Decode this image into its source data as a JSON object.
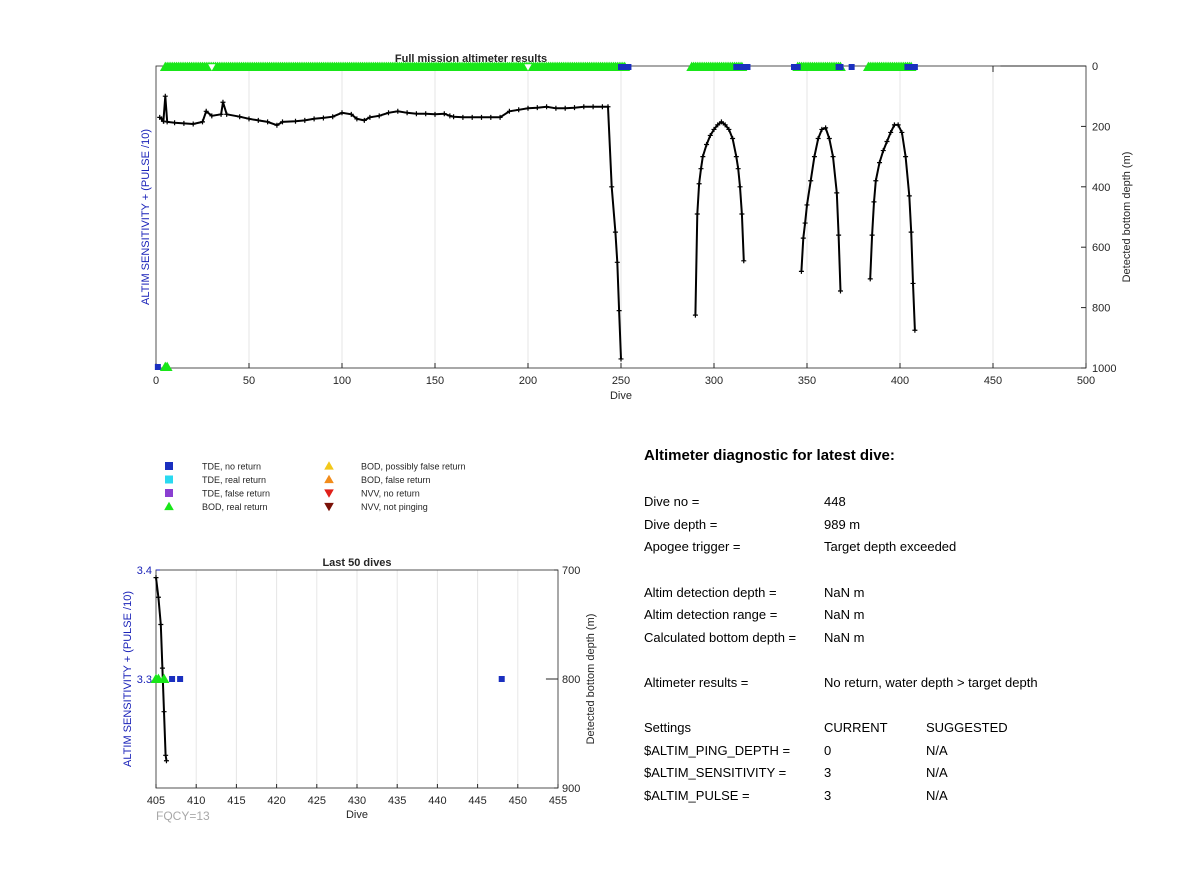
{
  "colors": {
    "tde_no_return": "#1a2fbf",
    "tde_real_return": "#29d9f0",
    "tde_false_return": "#8a3fd1",
    "bod_real_return": "#19e619",
    "bod_possibly_false": "#f2c81a",
    "bod_false_return": "#f28c1a",
    "nvv_no_return": "#e0201a",
    "nvv_not_pinging": "#7a1208",
    "depth_line": "#000000",
    "left_axis_label": "#1a22b8",
    "fqcy_text": "#a8a8a8"
  },
  "legend": {
    "items": [
      {
        "label": "TDE, no return",
        "marker": "square",
        "color_key": "tde_no_return"
      },
      {
        "label": "TDE, real return",
        "marker": "square",
        "color_key": "tde_real_return"
      },
      {
        "label": "TDE, false return",
        "marker": "square",
        "color_key": "tde_false_return"
      },
      {
        "label": "BOD, real return",
        "marker": "triangle-up",
        "color_key": "bod_real_return"
      },
      {
        "label": "BOD, possibly false return",
        "marker": "triangle-up",
        "color_key": "bod_possibly_false"
      },
      {
        "label": "BOD, false return",
        "marker": "triangle-up",
        "color_key": "bod_false_return"
      },
      {
        "label": "NVV, no return",
        "marker": "triangle-down",
        "color_key": "nvv_no_return"
      },
      {
        "label": "NVV, not pinging",
        "marker": "triangle-down",
        "color_key": "nvv_not_pinging"
      }
    ]
  },
  "chart_data": [
    {
      "type": "line",
      "title": "Full mission altimeter results",
      "xlabel": "Dive",
      "ylabel_left": "ALTIM SENSITIVITY + (PULSE /10)",
      "ylabel_right": "Detected bottom depth (m)",
      "xlim": [
        0,
        500
      ],
      "x_ticks": [
        0,
        50,
        100,
        150,
        200,
        250,
        300,
        350,
        400,
        450,
        500
      ],
      "y_right_lim": [
        1000,
        0
      ],
      "y_right_ticks": [
        0,
        200,
        400,
        600,
        800,
        1000
      ],
      "grid": "x",
      "series": [
        {
          "name": "Detected bottom depth",
          "style": "line-plus",
          "color_key": "depth_line",
          "segments": [
            [
              [
                2,
                170
              ],
              [
                3,
                175
              ],
              [
                4,
                183
              ],
              [
                5,
                100
              ],
              [
                6,
                185
              ],
              [
                10,
                188
              ],
              [
                15,
                190
              ],
              [
                20,
                192
              ],
              [
                25,
                185
              ],
              [
                27,
                150
              ],
              [
                30,
                165
              ],
              [
                35,
                160
              ],
              [
                36,
                120
              ],
              [
                38,
                160
              ],
              [
                45,
                168
              ],
              [
                50,
                175
              ],
              [
                55,
                180
              ],
              [
                60,
                185
              ],
              [
                65,
                196
              ],
              [
                68,
                185
              ],
              [
                75,
                183
              ],
              [
                80,
                180
              ],
              [
                85,
                175
              ],
              [
                90,
                172
              ],
              [
                95,
                168
              ],
              [
                100,
                155
              ],
              [
                105,
                160
              ],
              [
                108,
                175
              ],
              [
                112,
                180
              ],
              [
                115,
                170
              ],
              [
                120,
                165
              ],
              [
                125,
                155
              ],
              [
                130,
                150
              ],
              [
                135,
                155
              ],
              [
                140,
                158
              ],
              [
                145,
                158
              ],
              [
                150,
                160
              ],
              [
                155,
                158
              ],
              [
                158,
                165
              ],
              [
                160,
                168
              ],
              [
                165,
                170
              ],
              [
                170,
                170
              ],
              [
                175,
                170
              ],
              [
                180,
                170
              ],
              [
                185,
                170
              ],
              [
                190,
                150
              ],
              [
                195,
                145
              ],
              [
                200,
                140
              ],
              [
                205,
                138
              ],
              [
                210,
                135
              ],
              [
                215,
                140
              ],
              [
                220,
                140
              ],
              [
                225,
                138
              ],
              [
                230,
                135
              ],
              [
                235,
                135
              ],
              [
                240,
                135
              ],
              [
                243,
                135
              ],
              [
                245,
                400
              ],
              [
                247,
                550
              ],
              [
                248,
                650
              ],
              [
                249,
                810
              ],
              [
                250,
                970
              ]
            ],
            [
              [
                290,
                825
              ],
              [
                291,
                490
              ],
              [
                292,
                390
              ],
              [
                293,
                340
              ],
              [
                294,
                300
              ],
              [
                296,
                260
              ],
              [
                298,
                230
              ],
              [
                300,
                210
              ],
              [
                302,
                195
              ],
              [
                304,
                185
              ],
              [
                306,
                195
              ],
              [
                308,
                210
              ],
              [
                310,
                240
              ],
              [
                312,
                300
              ],
              [
                313,
                340
              ],
              [
                314,
                400
              ],
              [
                315,
                490
              ],
              [
                316,
                645
              ]
            ],
            [
              [
                347,
                680
              ],
              [
                348,
                570
              ],
              [
                349,
                520
              ],
              [
                350,
                460
              ],
              [
                352,
                380
              ],
              [
                354,
                300
              ],
              [
                356,
                240
              ],
              [
                358,
                210
              ],
              [
                360,
                205
              ],
              [
                362,
                240
              ],
              [
                364,
                300
              ],
              [
                366,
                420
              ],
              [
                367,
                560
              ],
              [
                368,
                745
              ]
            ],
            [
              [
                384,
                705
              ],
              [
                385,
                560
              ],
              [
                386,
                450
              ],
              [
                387,
                380
              ],
              [
                389,
                320
              ],
              [
                391,
                280
              ],
              [
                393,
                250
              ],
              [
                395,
                220
              ],
              [
                397,
                195
              ],
              [
                399,
                195
              ],
              [
                401,
                220
              ],
              [
                403,
                300
              ],
              [
                405,
                430
              ],
              [
                406,
                550
              ],
              [
                407,
                720
              ],
              [
                408,
                875
              ]
            ]
          ]
        },
        {
          "name": "BOD, real return",
          "marker": "triangle-up",
          "color_key": "bod_real_return",
          "ranges": [
            [
              5,
              252
            ],
            [
              288,
              315
            ],
            [
              345,
              368
            ],
            [
              383,
              406
            ]
          ]
        },
        {
          "name": "TDE, no return",
          "marker": "square",
          "color_key": "tde_no_return",
          "x": [
            250,
            251,
            252,
            253,
            254,
            312,
            313,
            314,
            315,
            316,
            317,
            318,
            343,
            344,
            345,
            367,
            368,
            374,
            404,
            405,
            406,
            407,
            408
          ]
        },
        {
          "name": "TDE, no return (sensitivity)",
          "marker": "square",
          "color_key": "tde_no_return",
          "x": [
            1
          ]
        },
        {
          "name": "BOD, real return (sensitivity)",
          "marker": "triangle-up",
          "color_key": "bod_real_return",
          "x": [
            5,
            6
          ]
        },
        {
          "name": "NVV, no return",
          "marker": "triangle-down",
          "color_key": "nvv_no_return",
          "x": [
            30,
            200
          ]
        }
      ]
    },
    {
      "type": "line",
      "title": "Last 50 dives",
      "xlabel": "Dive",
      "ylabel_left": "ALTIM SENSITIVITY + (PULSE /10)",
      "ylabel_right": "Detected bottom depth (m)",
      "xlim": [
        405,
        455
      ],
      "x_ticks": [
        405,
        410,
        415,
        420,
        425,
        430,
        435,
        440,
        445,
        450,
        455
      ],
      "y_left_lim": [
        3.2,
        3.4
      ],
      "y_left_ticks": [
        3.3,
        3.4
      ],
      "y_right_lim": [
        900,
        700
      ],
      "y_right_ticks": [
        700,
        800,
        900
      ],
      "grid": "x",
      "series": [
        {
          "name": "Detected bottom depth",
          "style": "line-plus",
          "color_key": "depth_line",
          "points": [
            [
              405,
              707
            ],
            [
              405.3,
              725
            ],
            [
              405.6,
              750
            ],
            [
              405.8,
              790
            ],
            [
              406,
              830
            ],
            [
              406.2,
              870
            ],
            [
              406.3,
              875
            ]
          ]
        },
        {
          "name": "BOD, real return",
          "marker": "triangle-up",
          "color_key": "bod_real_return",
          "x": [
            405,
            405.3,
            406
          ]
        },
        {
          "name": "TDE, no return",
          "marker": "square",
          "color_key": "tde_no_return",
          "x": [
            407,
            408,
            448
          ]
        }
      ]
    }
  ],
  "bottom_left_note": "FQCY=13",
  "diagnostic": {
    "title": "Altimeter diagnostic for latest dive:",
    "rows": [
      {
        "label": "Dive no =",
        "value": "448"
      },
      {
        "label": "Dive depth =",
        "value": "989 m"
      },
      {
        "label": "Apogee trigger =",
        "value": "Target depth exceeded"
      },
      {
        "label": "Altim detection depth =",
        "value": "NaN m"
      },
      {
        "label": "Altim detection range =",
        "value": "NaN m"
      },
      {
        "label": "Calculated bottom depth =",
        "value": "NaN m"
      },
      {
        "label": "Altimeter results =",
        "value": "No return, water depth > target depth"
      }
    ],
    "settings_header": {
      "label": "Settings",
      "current": "CURRENT",
      "suggested": "SUGGESTED"
    },
    "settings": [
      {
        "label": "$ALTIM_PING_DEPTH =",
        "current": "0",
        "suggested": "N/A"
      },
      {
        "label": "$ALTIM_SENSITIVITY =",
        "current": "3",
        "suggested": "N/A"
      },
      {
        "label": "$ALTIM_PULSE =",
        "current": "3",
        "suggested": "N/A"
      }
    ]
  }
}
